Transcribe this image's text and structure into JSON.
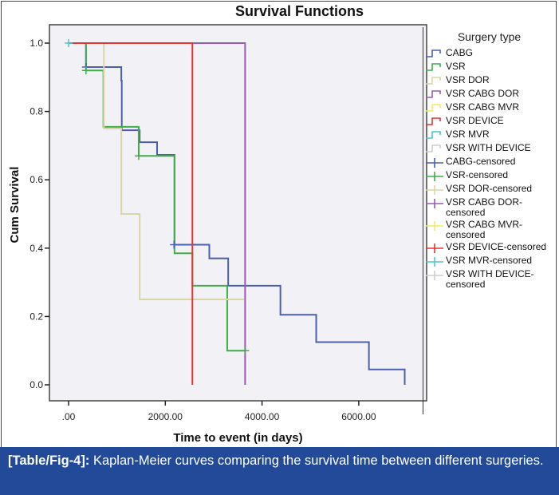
{
  "caption": {
    "label": "[Table/Fig-4]:",
    "text": " Kaplan-Meier curves comparing the survival time between different surgeries."
  },
  "chart_data": {
    "type": "line",
    "subtype": "kaplan-meier-step",
    "title": "Survival Functions",
    "xlabel": "Time to event (in days)",
    "ylabel": "Cum Survival",
    "xlim": [
      -400,
      7400
    ],
    "ylim": [
      -0.05,
      1.05
    ],
    "xticks": [
      0,
      2000,
      4000,
      6000
    ],
    "xtick_labels": [
      ".00",
      "2000.00",
      "4000.00",
      "6000.00"
    ],
    "yticks": [
      0.0,
      0.2,
      0.4,
      0.6,
      0.8,
      1.0
    ],
    "ytick_labels": [
      "0.0",
      "0.2",
      "0.4",
      "0.6",
      "0.8",
      "1.0"
    ],
    "grid": false,
    "legend_title": "Surgery type",
    "legend_position": "right",
    "series": [
      {
        "name": "CABG",
        "color": "#4a5fb0",
        "steps": [
          [
            0,
            1.0
          ],
          [
            360,
            0.93
          ],
          [
            1090,
            0.89
          ],
          [
            1100,
            0.745
          ],
          [
            1470,
            0.71
          ],
          [
            1830,
            0.673
          ],
          [
            2190,
            0.41
          ],
          [
            2910,
            0.37
          ],
          [
            3300,
            0.29
          ],
          [
            4380,
            0.205
          ],
          [
            5120,
            0.125
          ],
          [
            6210,
            0.045
          ],
          [
            6950,
            0.0
          ]
        ],
        "end": 6950,
        "censored": [
          [
            360,
            0.93
          ],
          [
            2180,
            0.41
          ]
        ]
      },
      {
        "name": "VSR",
        "color": "#3fae4a",
        "steps": [
          [
            0,
            1.0
          ],
          [
            360,
            0.92
          ],
          [
            720,
            0.755
          ],
          [
            1450,
            0.67
          ],
          [
            2190,
            0.385
          ],
          [
            2560,
            0.29
          ],
          [
            3280,
            0.1
          ]
        ],
        "end": 3650,
        "censored": [
          [
            360,
            0.92
          ],
          [
            1450,
            0.67
          ],
          [
            3650,
            0.1
          ]
        ]
      },
      {
        "name": "VSR DOR",
        "color": "#d8d6a4",
        "steps": [
          [
            0,
            1.0
          ],
          [
            730,
            0.75
          ],
          [
            1090,
            0.5
          ],
          [
            1470,
            0.25
          ]
        ],
        "end": 3630,
        "censored": []
      },
      {
        "name": "VSR CABG DOR",
        "color": "#9b59b6",
        "steps": [
          [
            0,
            1.0
          ],
          [
            3650,
            0.0
          ]
        ],
        "end": 3650,
        "censored": []
      },
      {
        "name": "VSR CABG MVR",
        "color": "#f0ea6a",
        "steps": [],
        "end": 0,
        "censored": []
      },
      {
        "name": "VSR DEVICE",
        "color": "#e8342f",
        "steps": [
          [
            0,
            1.0
          ],
          [
            2560,
            0.0
          ]
        ],
        "end": 2560,
        "censored": []
      },
      {
        "name": "VSR MVR",
        "color": "#4cc7c7",
        "steps": [],
        "end": 0,
        "censored": [
          [
            0,
            1.0
          ]
        ]
      },
      {
        "name": "VSR WITH DEVICE",
        "color": "#cfcfcf",
        "steps": [],
        "end": 0,
        "censored": []
      }
    ],
    "legend_entries": [
      {
        "label": "CABG",
        "color": "#4a5fb0",
        "kind": "step"
      },
      {
        "label": "VSR",
        "color": "#3fae4a",
        "kind": "step"
      },
      {
        "label": "VSR DOR",
        "color": "#d8d6a4",
        "kind": "step"
      },
      {
        "label": "VSR CABG DOR",
        "color": "#9b59b6",
        "kind": "step"
      },
      {
        "label": "VSR CABG MVR",
        "color": "#f0ea6a",
        "kind": "step"
      },
      {
        "label": "VSR DEVICE",
        "color": "#e8342f",
        "kind": "step"
      },
      {
        "label": "VSR MVR",
        "color": "#4cc7c7",
        "kind": "step"
      },
      {
        "label": "VSR WITH DEVICE",
        "color": "#cfcfcf",
        "kind": "step"
      },
      {
        "label": "CABG-censored",
        "color": "#4a5fb0",
        "kind": "cross"
      },
      {
        "label": "VSR-censored",
        "color": "#3fae4a",
        "kind": "cross"
      },
      {
        "label": "VSR DOR-censored",
        "color": "#d8d6a4",
        "kind": "cross"
      },
      {
        "label": "VSR CABG DOR-censored",
        "color": "#9b59b6",
        "kind": "cross"
      },
      {
        "label": "VSR CABG MVR-censored",
        "color": "#f0ea6a",
        "kind": "cross"
      },
      {
        "label": "VSR DEVICE-censored",
        "color": "#e8342f",
        "kind": "cross"
      },
      {
        "label": "VSR MVR-censored",
        "color": "#4cc7c7",
        "kind": "cross"
      },
      {
        "label": "VSR WITH DEVICE-censored",
        "color": "#cfcfcf",
        "kind": "cross"
      }
    ]
  }
}
